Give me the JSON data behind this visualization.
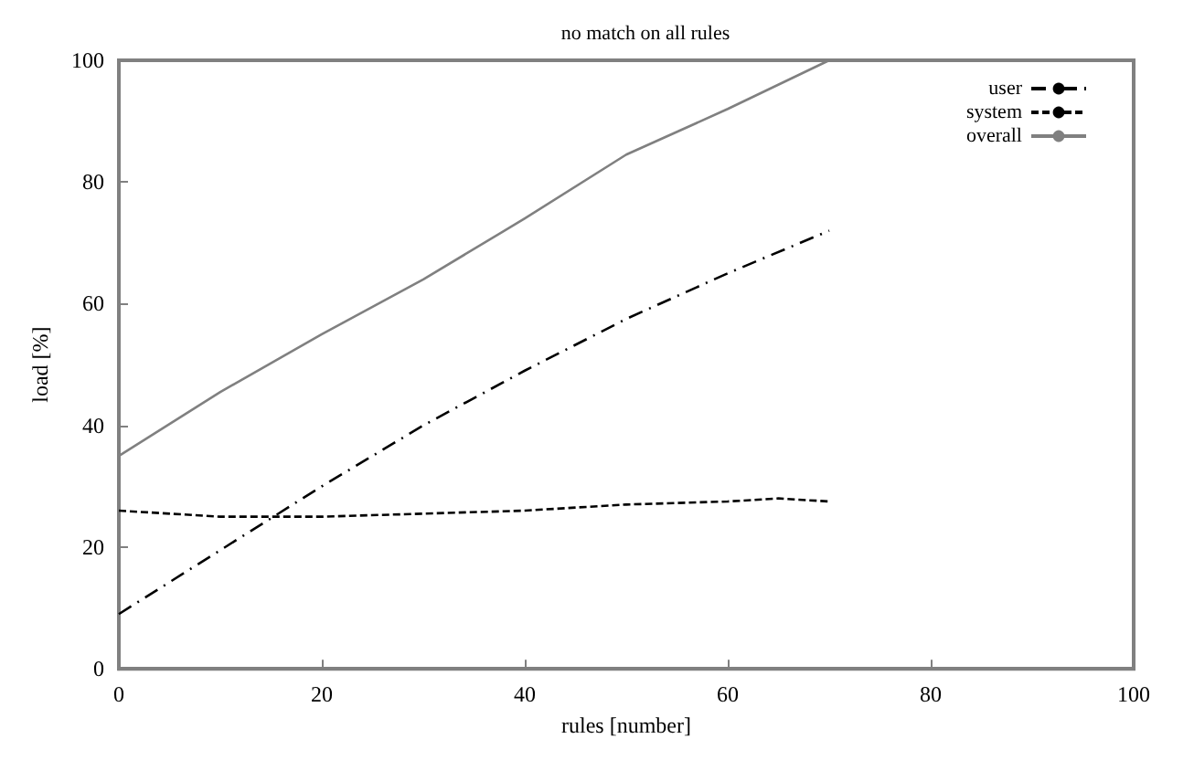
{
  "chart_data": {
    "type": "line",
    "title": "no match on all rules",
    "xlabel": "rules [number]",
    "ylabel": "load [%]",
    "xlim": [
      0,
      100
    ],
    "xticks": [
      0,
      20,
      40,
      60,
      80,
      100
    ],
    "ylim": [
      0,
      100
    ],
    "yticks": [
      0,
      20,
      40,
      60,
      80,
      100
    ],
    "grid": false,
    "legend": "top right",
    "marker": "none",
    "series": [
      {
        "name": "user",
        "color": "#000000",
        "line_style": "dashdot",
        "x": [
          0,
          10,
          20,
          30,
          40,
          50,
          60,
          70
        ],
        "values": [
          9,
          19.5,
          30,
          40,
          49,
          57.5,
          65,
          72
        ]
      },
      {
        "name": "system",
        "color": "#000000",
        "line_style": "dashed",
        "x": [
          0,
          10,
          20,
          30,
          40,
          50,
          60,
          65,
          70
        ],
        "values": [
          26,
          25,
          25,
          25.5,
          26,
          27,
          27.5,
          28,
          27.5
        ]
      },
      {
        "name": "overall",
        "color": "#808080",
        "line_style": "solid",
        "x": [
          0,
          10,
          20,
          30,
          40,
          50,
          60,
          70
        ],
        "values": [
          35,
          45.5,
          55,
          64,
          74,
          84.5,
          92,
          100
        ]
      }
    ]
  }
}
